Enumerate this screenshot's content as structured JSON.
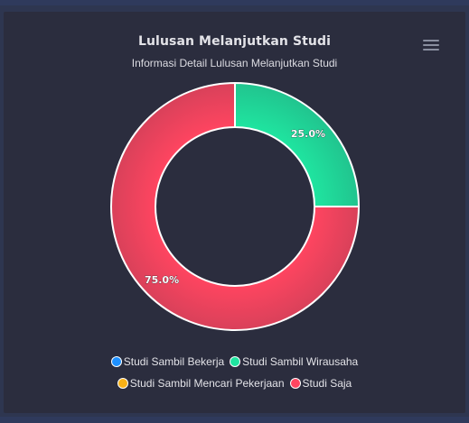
{
  "chart_data": {
    "type": "pie",
    "variant": "donut",
    "title": "Lulusan Melanjutkan Studi",
    "subtitle": "Informasi Detail Lulusan Melanjutkan Studi",
    "series": [
      {
        "name": "Studi Sambil Bekerja",
        "value": 0,
        "label": "",
        "color": "#1e90ff"
      },
      {
        "name": "Studi Sambil Wirausaha",
        "value": 25.0,
        "label": "25.0%",
        "color": "#1fe5a0"
      },
      {
        "name": "Studi Sambil Mencari Pekerjaan",
        "value": 0,
        "label": "",
        "color": "#f9b116"
      },
      {
        "name": "Studi Saja",
        "value": 75.0,
        "label": "75.0%",
        "color": "#ff4560"
      }
    ],
    "legend_position": "bottom"
  },
  "toolbar": {
    "menu_icon": "hamburger-menu-icon"
  },
  "colors": {
    "background": "#2b2d3e",
    "outer": "#2e3650",
    "text": "#e3e3e8"
  }
}
